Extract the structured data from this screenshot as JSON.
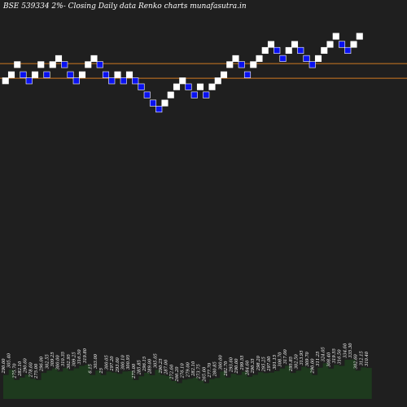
{
  "header": {
    "title": "BSE 539334  2%-  Closing Daily data  Renko  charts munafasutra.in"
  },
  "chart_data": {
    "type": "renko",
    "title": "BSE 539334  2%-  Closing Daily data  Renko  charts munafasutra.in",
    "colors": {
      "background": "#1f1f1f",
      "up_brick": "#ffffff",
      "down_brick": "#0a12f0",
      "down_brick_border": "#ffffff",
      "reference_line": "#d07a22",
      "volume_fill": "#1e3a1e",
      "volume_outline": "#ffffff",
      "label_text": "#ffffff"
    },
    "reference_lines": [
      316.5,
      309.25
    ],
    "brick_levels": [
      308,
      311,
      316,
      311,
      308,
      311,
      316,
      311,
      316,
      319,
      316,
      311,
      308,
      311,
      316,
      319,
      316,
      311,
      308,
      311,
      308,
      311,
      308,
      305,
      301,
      297,
      294,
      297,
      301,
      305,
      308,
      305,
      301,
      305,
      301,
      305,
      308,
      311,
      316,
      319,
      316,
      311,
      316,
      319,
      323,
      326,
      323,
      319,
      323,
      326,
      323,
      319,
      316,
      319,
      323,
      326,
      330,
      326,
      323,
      326,
      330
    ],
    "brick_direction": [
      "up",
      "up",
      "up",
      "down",
      "down",
      "up",
      "up",
      "down",
      "up",
      "up",
      "down",
      "down",
      "down",
      "up",
      "up",
      "up",
      "down",
      "down",
      "down",
      "up",
      "down",
      "up",
      "down",
      "down",
      "down",
      "down",
      "down",
      "up",
      "up",
      "up",
      "up",
      "down",
      "down",
      "up",
      "down",
      "up",
      "up",
      "up",
      "up",
      "up",
      "down",
      "down",
      "up",
      "up",
      "up",
      "up",
      "down",
      "down",
      "up",
      "up",
      "down",
      "down",
      "down",
      "up",
      "up",
      "up",
      "up",
      "down",
      "down",
      "up",
      "up"
    ],
    "volume_labels": [
      "290.00",
      "305.40",
      "275.70",
      "282.10",
      "290.60",
      "278.60",
      "275.00",
      "296.00",
      "302.55",
      "309.25",
      "300.00",
      "310.35",
      "302.95",
      "309.25",
      "316.50",
      "319.80",
      "6.15",
      "303.00",
      "25",
      "300.05",
      "297.20",
      "293.00",
      "300.10",
      "300.95",
      "275.00",
      "285.85",
      "296.15",
      "289.00",
      "305.05",
      "290.25",
      "287.00",
      "272.60",
      "266.20",
      "276.10",
      "279.00",
      "282.10",
      "273.75",
      "265.60",
      "277.70",
      "280.85",
      "300.00",
      "282.70",
      "293.60",
      "290.00",
      "299.55",
      "284.60",
      "290.35",
      "298.20",
      "295.25",
      "297.00",
      "301.15",
      "308.70",
      "317.00",
      "295.85",
      "302.50",
      "313.95",
      "309.70",
      "290.00",
      "311.25",
      "324.05",
      "308.40",
      "319.55",
      "316.50",
      "334.60",
      "335.30",
      "302.60",
      "312.15",
      "310.40"
    ]
  }
}
